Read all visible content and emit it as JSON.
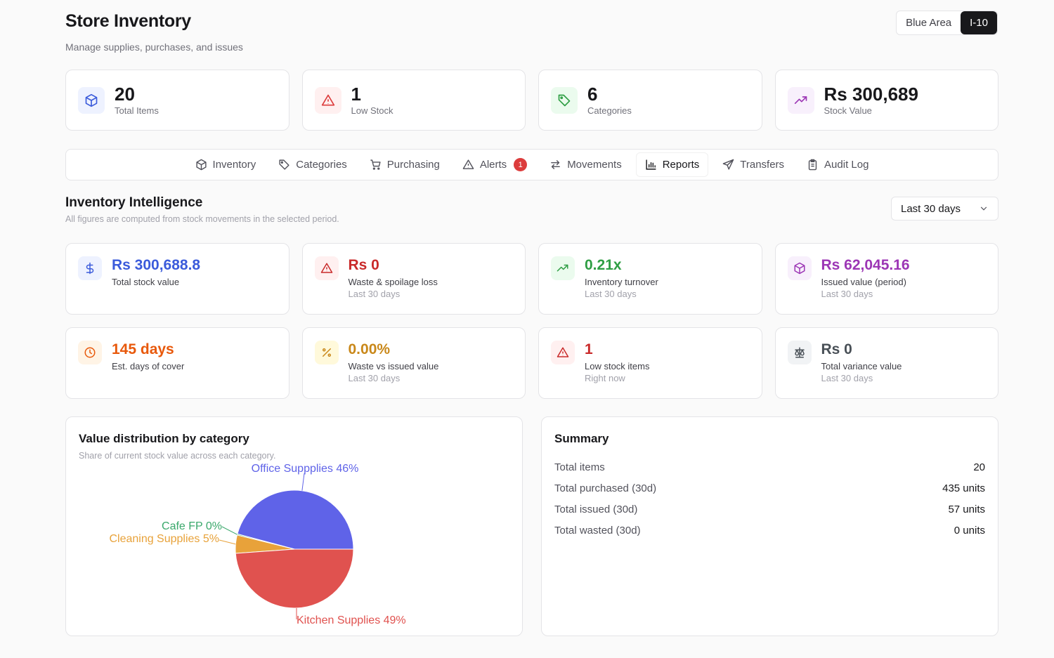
{
  "header": {
    "title": "Store Inventory",
    "subtitle": "Manage supplies, purchases, and issues"
  },
  "branch": {
    "area": "Blue Area",
    "code": "I-10"
  },
  "stats": [
    {
      "value": "20",
      "label": "Total Items",
      "icon": "package-icon",
      "color": "#3b5bdb"
    },
    {
      "value": "1",
      "label": "Low Stock",
      "icon": "alert-triangle-icon",
      "color": "#dc3c3c"
    },
    {
      "value": "6",
      "label": "Categories",
      "icon": "tag-icon",
      "color": "#2f9e44"
    },
    {
      "value": "Rs 300,689",
      "label": "Stock Value",
      "icon": "trending-up-icon",
      "color": "#9c36b5"
    }
  ],
  "tabs": [
    {
      "label": "Inventory",
      "icon": "package-icon"
    },
    {
      "label": "Categories",
      "icon": "tag-icon"
    },
    {
      "label": "Purchasing",
      "icon": "cart-icon"
    },
    {
      "label": "Alerts",
      "icon": "alert-triangle-icon",
      "badge": "1"
    },
    {
      "label": "Movements",
      "icon": "arrows-icon"
    },
    {
      "label": "Reports",
      "icon": "bar-chart-icon",
      "active": true
    },
    {
      "label": "Transfers",
      "icon": "send-icon"
    },
    {
      "label": "Audit Log",
      "icon": "clipboard-icon"
    }
  ],
  "intel": {
    "title": "Inventory Intelligence",
    "subtitle": "All figures are computed from stock movements in the selected period.",
    "period": "Last 30 days"
  },
  "metrics": [
    {
      "value": "Rs 300,688.8",
      "label": "Total stock value",
      "sub": "",
      "icon": "dollar-icon",
      "color": "#3b5bdb",
      "bg": "#eef2ff"
    },
    {
      "value": "Rs 0",
      "label": "Waste & spoilage loss",
      "sub": "Last 30 days",
      "icon": "alert-triangle-icon",
      "color": "#c92a2a",
      "bg": "#fff0f0"
    },
    {
      "value": "0.21x",
      "label": "Inventory turnover",
      "sub": "Last 30 days",
      "icon": "trending-up-icon",
      "color": "#2f9e44",
      "bg": "#ebfbee"
    },
    {
      "value": "Rs 62,045.16",
      "label": "Issued value (period)",
      "sub": "Last 30 days",
      "icon": "package-icon",
      "color": "#9c36b5",
      "bg": "#f8f0fc"
    },
    {
      "value": "145 days",
      "label": "Est. days of cover",
      "sub": "",
      "icon": "clock-icon",
      "color": "#e8590c",
      "bg": "#fff4e6"
    },
    {
      "value": "0.00%",
      "label": "Waste vs issued value",
      "sub": "Last 30 days",
      "icon": "percent-icon",
      "color": "#c9881a",
      "bg": "#fff9db"
    },
    {
      "value": "1",
      "label": "Low stock items",
      "sub": "Right now",
      "icon": "alert-triangle-icon",
      "color": "#c92a2a",
      "bg": "#fff0f0"
    },
    {
      "value": "Rs 0",
      "label": "Total variance value",
      "sub": "Last 30 days",
      "icon": "scale-icon",
      "color": "#495057",
      "bg": "#f1f3f5"
    }
  ],
  "chart": {
    "title": "Value distribution by category",
    "subtitle": "Share of current stock value across each category."
  },
  "chart_data": {
    "type": "pie",
    "slices": [
      {
        "name": "Office Supplies",
        "label": "Office Suppplies 46%",
        "value": 46,
        "color": "#5f63e8"
      },
      {
        "name": "Cafe FP",
        "label": "Cafe FP 0%",
        "value": 0.3,
        "color": "#3aa86b"
      },
      {
        "name": "Cleaning Supplies",
        "label": "Cleaning Supplies 5%",
        "value": 5,
        "color": "#e8a23a"
      },
      {
        "name": "Kitchen Supplies",
        "label": "Kitchen Supplies 49%",
        "value": 49,
        "color": "#e0524f"
      }
    ]
  },
  "summary": {
    "title": "Summary",
    "rows": [
      {
        "label": "Total items",
        "value": "20"
      },
      {
        "label": "Total purchased (30d)",
        "value": "435 units"
      },
      {
        "label": "Total issued (30d)",
        "value": "57 units"
      },
      {
        "label": "Total wasted (30d)",
        "value": "0 units"
      }
    ]
  }
}
